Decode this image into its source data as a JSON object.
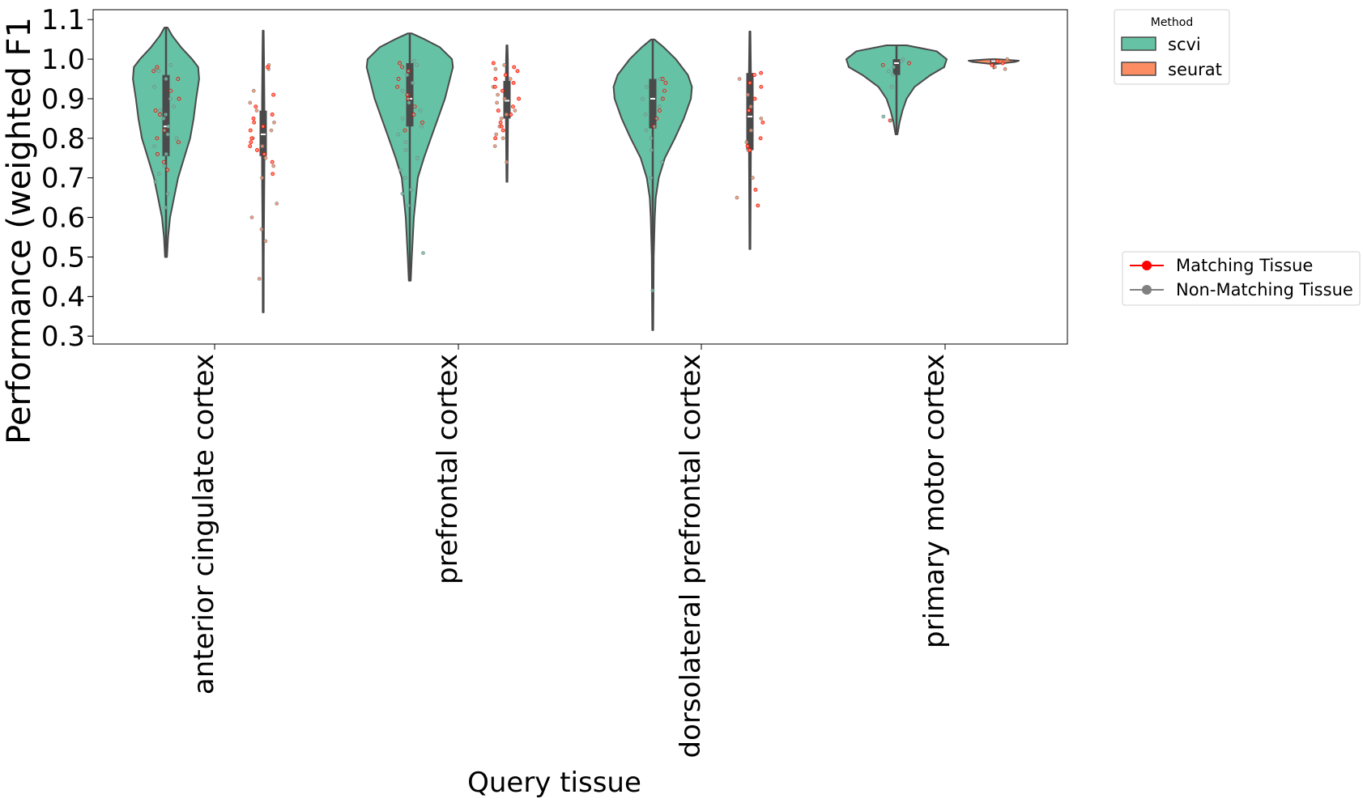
{
  "chart_data": {
    "type": "violin",
    "ylabel": "Performance (weighted F1",
    "xlabel": "Query tissue",
    "ylim": [
      0.28,
      1.125
    ],
    "yticks": [
      0.3,
      0.4,
      0.5,
      0.6,
      0.7,
      0.8,
      0.9,
      1.0,
      1.1
    ],
    "ytick_labels": [
      "0.3",
      "0.4",
      "0.5",
      "0.6",
      "0.7",
      "0.8",
      "0.9",
      "1.0",
      "1.1"
    ],
    "categories": [
      "anterior cingulate cortex",
      "prefrontal cortex",
      "dorsolateral prefrontal cortex",
      "primary motor cortex"
    ],
    "legend_method": {
      "title": "Method",
      "placement": "outside-top-right",
      "entries": [
        {
          "label": "scvi",
          "color": "#66c2a5"
        },
        {
          "label": "seurat",
          "color": "#fc8d62"
        }
      ]
    },
    "legend_tissue": {
      "placement": "outside-right",
      "entries": [
        {
          "label": "Matching Tissue",
          "color": "#ff0000"
        },
        {
          "label": "Non-Matching Tissue",
          "color": "#808080"
        }
      ]
    },
    "series": [
      {
        "name": "scvi",
        "color": "#66c2a5",
        "groups": [
          {
            "min": 0.5,
            "max": 1.08,
            "q1": 0.755,
            "median": 0.83,
            "q3": 0.96,
            "whisker_low": 0.6,
            "whisker_high": 0.98,
            "density": [
              [
                0.5,
                0.02
              ],
              [
                0.55,
                0.04
              ],
              [
                0.6,
                0.08
              ],
              [
                0.65,
                0.16
              ],
              [
                0.7,
                0.24
              ],
              [
                0.75,
                0.36
              ],
              [
                0.8,
                0.48
              ],
              [
                0.85,
                0.55
              ],
              [
                0.9,
                0.6
              ],
              [
                0.95,
                0.66
              ],
              [
                0.98,
                0.64
              ],
              [
                1.0,
                0.52
              ],
              [
                1.03,
                0.3
              ],
              [
                1.06,
                0.12
              ],
              [
                1.08,
                0.03
              ]
            ],
            "matching": [
              0.98,
              0.97,
              0.95,
              0.9,
              0.87,
              0.82,
              0.79,
              0.76,
              0.74,
              0.72,
              0.92,
              0.86,
              0.8
            ],
            "nonmatching": [
              0.625,
              0.66,
              0.69,
              0.71,
              0.73,
              0.76,
              0.78,
              0.8,
              0.83,
              0.85,
              0.87,
              0.88,
              0.9,
              0.93,
              0.95,
              0.97,
              0.985,
              0.975,
              0.81,
              0.86
            ]
          },
          {
            "min": 0.44,
            "max": 1.065,
            "q1": 0.83,
            "median": 0.9,
            "q3": 0.99,
            "whisker_low": 0.68,
            "whisker_high": 1.0,
            "density": [
              [
                0.44,
                0.02
              ],
              [
                0.5,
                0.04
              ],
              [
                0.6,
                0.08
              ],
              [
                0.7,
                0.16
              ],
              [
                0.75,
                0.28
              ],
              [
                0.8,
                0.42
              ],
              [
                0.85,
                0.56
              ],
              [
                0.9,
                0.7
              ],
              [
                0.95,
                0.8
              ],
              [
                0.98,
                0.86
              ],
              [
                1.0,
                0.84
              ],
              [
                1.03,
                0.6
              ],
              [
                1.05,
                0.3
              ],
              [
                1.065,
                0.04
              ]
            ],
            "matching": [
              0.99,
              0.98,
              0.97,
              0.95,
              0.93,
              0.91,
              0.88,
              0.86,
              0.84,
              0.82,
              0.9
            ],
            "nonmatching": [
              0.51,
              0.63,
              0.66,
              0.67,
              0.7,
              0.72,
              0.75,
              0.77,
              0.79,
              0.81,
              0.83,
              0.85,
              0.87,
              0.89,
              0.92,
              0.94,
              0.96,
              0.985,
              0.995
            ]
          },
          {
            "min": 0.315,
            "max": 1.05,
            "q1": 0.825,
            "median": 0.9,
            "q3": 0.95,
            "whisker_low": 0.74,
            "whisker_high": 0.96,
            "density": [
              [
                0.315,
                0.01
              ],
              [
                0.4,
                0.015
              ],
              [
                0.5,
                0.02
              ],
              [
                0.6,
                0.04
              ],
              [
                0.65,
                0.06
              ],
              [
                0.7,
                0.12
              ],
              [
                0.75,
                0.24
              ],
              [
                0.8,
                0.44
              ],
              [
                0.85,
                0.62
              ],
              [
                0.9,
                0.76
              ],
              [
                0.93,
                0.78
              ],
              [
                0.96,
                0.7
              ],
              [
                1.0,
                0.46
              ],
              [
                1.03,
                0.22
              ],
              [
                1.05,
                0.03
              ]
            ],
            "matching": [
              0.95,
              0.94,
              0.92,
              0.9,
              0.87,
              0.85,
              0.83
            ],
            "nonmatching": [
              0.415,
              0.7,
              0.74,
              0.77,
              0.8,
              0.82,
              0.86,
              0.88,
              0.9,
              0.93,
              0.95
            ]
          },
          {
            "min": 0.81,
            "max": 1.035,
            "q1": 0.96,
            "median": 0.99,
            "q3": 1.0,
            "whisker_low": 0.915,
            "whisker_high": 1.005,
            "density": [
              [
                0.81,
                0.02
              ],
              [
                0.84,
                0.06
              ],
              [
                0.87,
                0.12
              ],
              [
                0.9,
                0.2
              ],
              [
                0.93,
                0.36
              ],
              [
                0.96,
                0.68
              ],
              [
                0.98,
                0.95
              ],
              [
                1.0,
                1.0
              ],
              [
                1.02,
                0.8
              ],
              [
                1.035,
                0.2
              ]
            ],
            "matching": [
              0.845,
              0.99,
              0.985
            ],
            "nonmatching": [
              0.855,
              0.93,
              0.96,
              0.97,
              0.98,
              0.995,
              1.0
            ]
          }
        ]
      },
      {
        "name": "seurat",
        "color": "#fc8d62",
        "groups": [
          {
            "min": 0.36,
            "max": 1.072,
            "q1": 0.755,
            "median": 0.81,
            "q3": 0.87,
            "whisker_low": 0.61,
            "whisker_high": 0.99,
            "density": [
              [
                0.36,
                0.01
              ],
              [
                0.5,
                0.012
              ],
              [
                0.6,
                0.016
              ],
              [
                0.7,
                0.022
              ],
              [
                0.8,
                0.026
              ],
              [
                0.9,
                0.022
              ],
              [
                1.0,
                0.016
              ],
              [
                1.072,
                0.01
              ]
            ],
            "matching": [
              0.98,
              0.91,
              0.88,
              0.86,
              0.84,
              0.82,
              0.8,
              0.78,
              0.76,
              0.74,
              0.71,
              0.85,
              0.83,
              0.79,
              0.77
            ],
            "nonmatching": [
              0.445,
              0.54,
              0.57,
              0.6,
              0.635,
              0.7,
              0.73,
              0.75,
              0.78,
              0.8,
              0.82,
              0.84,
              0.87,
              0.89,
              0.92,
              0.985,
              0.975
            ]
          },
          {
            "min": 0.69,
            "max": 1.035,
            "q1": 0.85,
            "median": 0.895,
            "q3": 0.945,
            "whisker_low": 0.74,
            "whisker_high": 0.995,
            "density": [
              [
                0.69,
                0.01
              ],
              [
                0.8,
                0.018
              ],
              [
                0.9,
                0.024
              ],
              [
                1.0,
                0.018
              ],
              [
                1.035,
                0.01
              ]
            ],
            "matching": [
              0.99,
              0.98,
              0.96,
              0.94,
              0.92,
              0.9,
              0.88,
              0.86,
              0.84,
              0.82,
              0.8,
              0.97,
              0.95,
              0.93,
              0.87,
              0.83
            ],
            "nonmatching": [
              0.74,
              0.78,
              0.8,
              0.83,
              0.85,
              0.87,
              0.89,
              0.91,
              0.93,
              0.95,
              0.975,
              0.985,
              0.81,
              0.86,
              0.9
            ]
          },
          {
            "min": 0.52,
            "max": 1.07,
            "q1": 0.77,
            "median": 0.855,
            "q3": 0.965,
            "whisker_low": 0.67,
            "whisker_high": 0.97,
            "density": [
              [
                0.52,
                0.01
              ],
              [
                0.7,
                0.016
              ],
              [
                0.85,
                0.022
              ],
              [
                0.97,
                0.02
              ],
              [
                1.07,
                0.01
              ]
            ],
            "matching": [
              0.965,
              0.96,
              0.94,
              0.93,
              0.9,
              0.87,
              0.84,
              0.8,
              0.78,
              0.77,
              0.67,
              0.63
            ],
            "nonmatching": [
              0.65,
              0.7,
              0.77,
              0.79,
              0.82,
              0.85,
              0.88,
              0.91,
              0.95
            ]
          },
          {
            "min": 0.975,
            "max": 1.0,
            "q1": 0.99,
            "median": 0.995,
            "q3": 1.0,
            "whisker_low": 0.985,
            "whisker_high": 1.0,
            "density": [
              [
                0.988,
                0.05
              ],
              [
                0.993,
                0.42
              ],
              [
                0.996,
                0.5
              ],
              [
                0.999,
                0.2
              ],
              [
                1.0,
                0.05
              ]
            ],
            "matching": [
              0.995,
              0.99,
              0.985
            ],
            "nonmatching": [
              0.975,
              0.98,
              1.0
            ]
          }
        ]
      }
    ]
  }
}
